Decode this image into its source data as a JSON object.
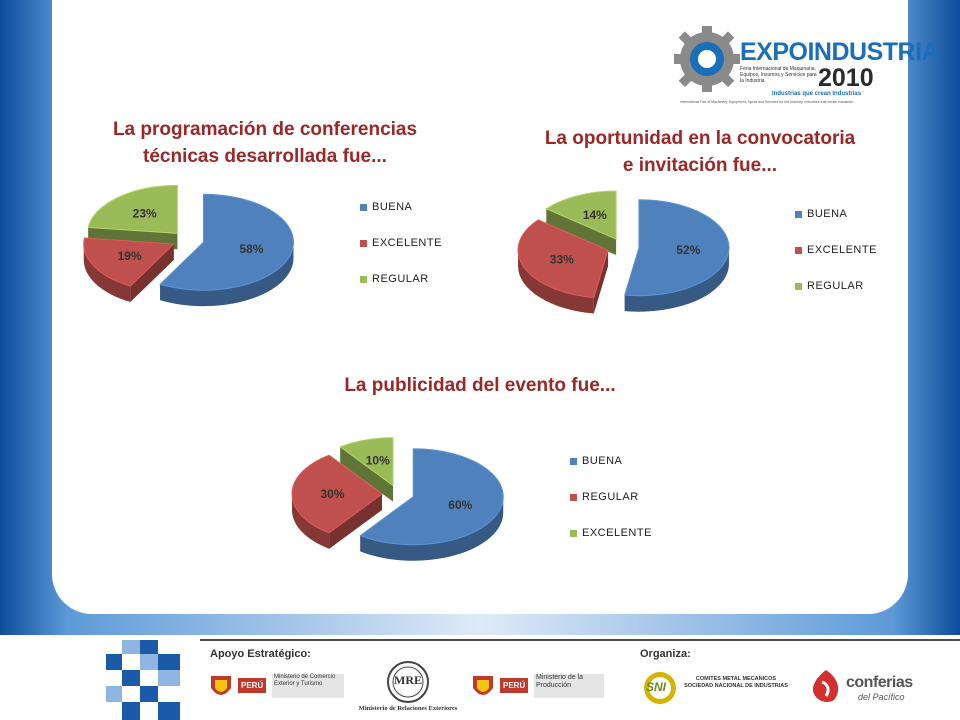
{
  "header": {
    "logo_word": "EXPOINDUSTRIA",
    "logo_year": "2010",
    "logo_sub": "Feria Internacional de Maquinaria, Equipos, Insumos y Servicios para la Industria",
    "logo_tag": "Industrias que crean Industrias",
    "logo_tag2": "International Fair of Machinery, Equipment, Inputs and Services for the Industry. Industries that create industries"
  },
  "colors": {
    "blue": "#4f81bd",
    "red": "#c0504d",
    "green": "#9bbb59",
    "title": "#9b2727",
    "frame": "#1a5aa8"
  },
  "chart_data": [
    {
      "type": "pie",
      "title": [
        "La programación de conferencias",
        "técnicas desarrollada fue..."
      ],
      "legend": [
        "BUENA",
        "EXCELENTE",
        "REGULAR"
      ],
      "values": [
        58,
        19,
        23
      ],
      "labels": [
        "58%",
        "19%",
        "23%"
      ],
      "colors": [
        "#4f81bd",
        "#c0504d",
        "#9bbb59"
      ],
      "legend_position": "right"
    },
    {
      "type": "pie",
      "title": [
        "La oportunidad  en la convocatoria",
        "e invitación fue..."
      ],
      "legend": [
        "BUENA",
        "EXCELENTE",
        "REGULAR"
      ],
      "values": [
        52,
        33,
        14
      ],
      "labels": [
        "52%",
        "33%",
        "14%"
      ],
      "colors": [
        "#4f81bd",
        "#c0504d",
        "#9bbb59"
      ],
      "legend_position": "right"
    },
    {
      "type": "pie",
      "title": [
        "La publicidad  del evento fue..."
      ],
      "legend": [
        "BUENA",
        "REGULAR",
        "EXCELENTE"
      ],
      "values": [
        60,
        30,
        10
      ],
      "labels": [
        "60%",
        "30%",
        "10%"
      ],
      "colors": [
        "#4f81bd",
        "#c0504d",
        "#9bbb59"
      ],
      "legend_position": "right"
    }
  ],
  "footer": {
    "apoyo_label": "Apoyo Estratégico:",
    "organiza_label": "Organiza:",
    "peru_tag": "PERÚ",
    "mincetur": "Ministerio de Comercio Exterior y Turismo",
    "mre_mark": "MRE",
    "mre_name": "Ministerio de Relaciones Exteriores",
    "produce": "Ministerio de la Producción",
    "sni_mark": "SNI",
    "sni_name": "COMITES METAL MECANICOS SOCIEDAD NACIONAL DE INDUSTRIAS",
    "conferias": "conferias",
    "conferias_sub": "del Pacífico"
  }
}
